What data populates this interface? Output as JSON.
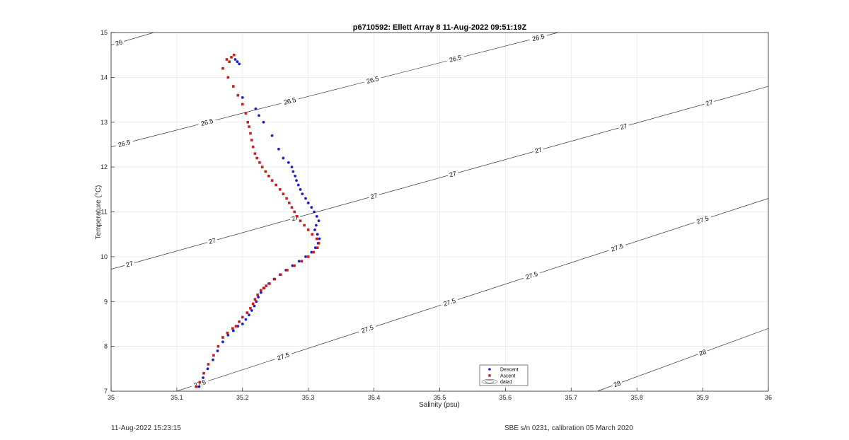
{
  "chart_data": {
    "type": "scatter",
    "title": "p6710592: Ellett Array 8 11-Aug-2022 09:51:19Z",
    "xlabel": "Salinity (psu)",
    "ylabel": "Temperature (°C)",
    "xlim": [
      35,
      36
    ],
    "ylim": [
      7,
      15
    ],
    "x_ticks": [
      "35",
      "35.1",
      "35.2",
      "35.3",
      "35.4",
      "35.5",
      "35.6",
      "35.7",
      "35.8",
      "35.9",
      "36"
    ],
    "y_ticks": [
      "7",
      "8",
      "9",
      "10",
      "11",
      "12",
      "13",
      "14",
      "15"
    ],
    "grid": true,
    "legend_position": "bottom-center",
    "legend": [
      "Descent",
      "Ascent",
      "data1"
    ],
    "series": [
      {
        "name": "Descent",
        "color": "#1f1fc8",
        "marker": "dot",
        "x": [
          35.134,
          35.14,
          35.147,
          35.155,
          35.162,
          35.17,
          35.178,
          35.186,
          35.193,
          35.2,
          35.205,
          35.21,
          35.214,
          35.218,
          35.221,
          35.224,
          35.228,
          35.233,
          35.24,
          35.248,
          35.257,
          35.266,
          35.276,
          35.286,
          35.296,
          35.305,
          35.311,
          35.315,
          35.317,
          35.314,
          35.31,
          35.312,
          35.316,
          35.313,
          35.309,
          35.305,
          35.3,
          35.296,
          35.291,
          35.288,
          35.285,
          35.282,
          35.28,
          35.277,
          35.275,
          35.27,
          35.262,
          35.255,
          35.245,
          35.232,
          35.225,
          35.22,
          35.2,
          35.195,
          35.192,
          35.189
        ],
        "y": [
          7.1,
          7.3,
          7.5,
          7.7,
          7.9,
          8.1,
          8.25,
          8.35,
          8.45,
          8.5,
          8.6,
          8.7,
          8.8,
          8.9,
          9.0,
          9.1,
          9.2,
          9.3,
          9.4,
          9.5,
          9.6,
          9.7,
          9.8,
          9.9,
          10.0,
          10.1,
          10.2,
          10.3,
          10.4,
          10.5,
          10.6,
          10.7,
          10.8,
          10.9,
          11.0,
          11.1,
          11.2,
          11.3,
          11.4,
          11.5,
          11.6,
          11.7,
          11.8,
          11.9,
          12.0,
          12.1,
          12.2,
          12.4,
          12.7,
          13.0,
          13.15,
          13.3,
          13.55,
          14.3,
          14.35,
          14.4
        ]
      },
      {
        "name": "Ascent",
        "color": "#d01a1a",
        "marker": "square",
        "x": [
          35.13,
          35.135,
          35.141,
          35.148,
          35.156,
          35.163,
          35.17,
          35.177,
          35.185,
          35.19,
          35.195,
          35.2,
          35.207,
          35.212,
          35.216,
          35.219,
          35.223,
          35.228,
          35.232,
          35.236,
          35.241,
          35.249,
          35.258,
          35.268,
          35.279,
          35.29,
          35.3,
          35.308,
          35.314,
          35.316,
          35.313,
          35.306,
          35.3,
          35.294,
          35.288,
          35.283,
          35.279,
          35.275,
          35.271,
          35.267,
          35.262,
          35.257,
          35.251,
          35.245,
          35.24,
          35.235,
          35.23,
          35.226,
          35.222,
          35.219,
          35.216,
          35.214,
          35.212,
          35.21,
          35.208,
          35.205,
          35.2,
          35.193,
          35.186,
          35.178,
          35.17,
          35.18,
          35.176,
          35.183,
          35.187
        ],
        "y": [
          7.1,
          7.2,
          7.4,
          7.6,
          7.8,
          8.0,
          8.2,
          8.3,
          8.4,
          8.45,
          8.55,
          8.65,
          8.75,
          8.85,
          8.95,
          9.05,
          9.15,
          9.25,
          9.3,
          9.35,
          9.4,
          9.5,
          9.6,
          9.7,
          9.8,
          9.9,
          10.0,
          10.1,
          10.2,
          10.3,
          10.4,
          10.5,
          10.6,
          10.7,
          10.8,
          10.9,
          11.0,
          11.1,
          11.2,
          11.3,
          11.4,
          11.5,
          11.6,
          11.7,
          11.8,
          11.9,
          12.0,
          12.1,
          12.2,
          12.3,
          12.45,
          12.6,
          12.75,
          12.9,
          13.0,
          13.2,
          13.4,
          13.6,
          13.8,
          14.0,
          14.2,
          14.35,
          14.4,
          14.45,
          14.5
        ]
      }
    ],
    "contours": [
      {
        "level": "26",
        "label": "26",
        "x1": 35.0,
        "y1": 14.72,
        "x2": 35.065,
        "y2": 15.0,
        "labels_at": [
          35.012
        ]
      },
      {
        "level": "26.5",
        "label": "26.5",
        "x1": 35.0,
        "y1": 12.45,
        "x2": 35.68,
        "y2": 15.0,
        "labels_at": [
          35.02,
          35.146,
          35.272,
          35.398,
          35.524,
          35.65
        ]
      },
      {
        "level": "27",
        "label": "27",
        "x1": 35.0,
        "y1": 9.72,
        "x2": 36.0,
        "y2": 13.8,
        "labels_at": [
          35.028,
          35.154,
          35.28,
          35.4,
          35.52,
          35.65,
          35.78,
          35.91
        ]
      },
      {
        "level": "27.5",
        "label": "27.5",
        "x1": 35.1,
        "y1": 7.0,
        "x2": 36.0,
        "y2": 11.3,
        "labels_at": [
          35.135,
          35.262,
          35.39,
          35.515,
          35.64,
          35.77,
          35.9
        ]
      },
      {
        "level": "28",
        "label": "28",
        "x1": 35.74,
        "y1": 7.0,
        "x2": 36.0,
        "y2": 8.4,
        "labels_at": [
          35.77,
          35.9
        ]
      }
    ]
  },
  "footer": {
    "left": "11-Aug-2022 15:23:15",
    "right": "SBE s/n 0231, calibration 05 March 2020"
  }
}
